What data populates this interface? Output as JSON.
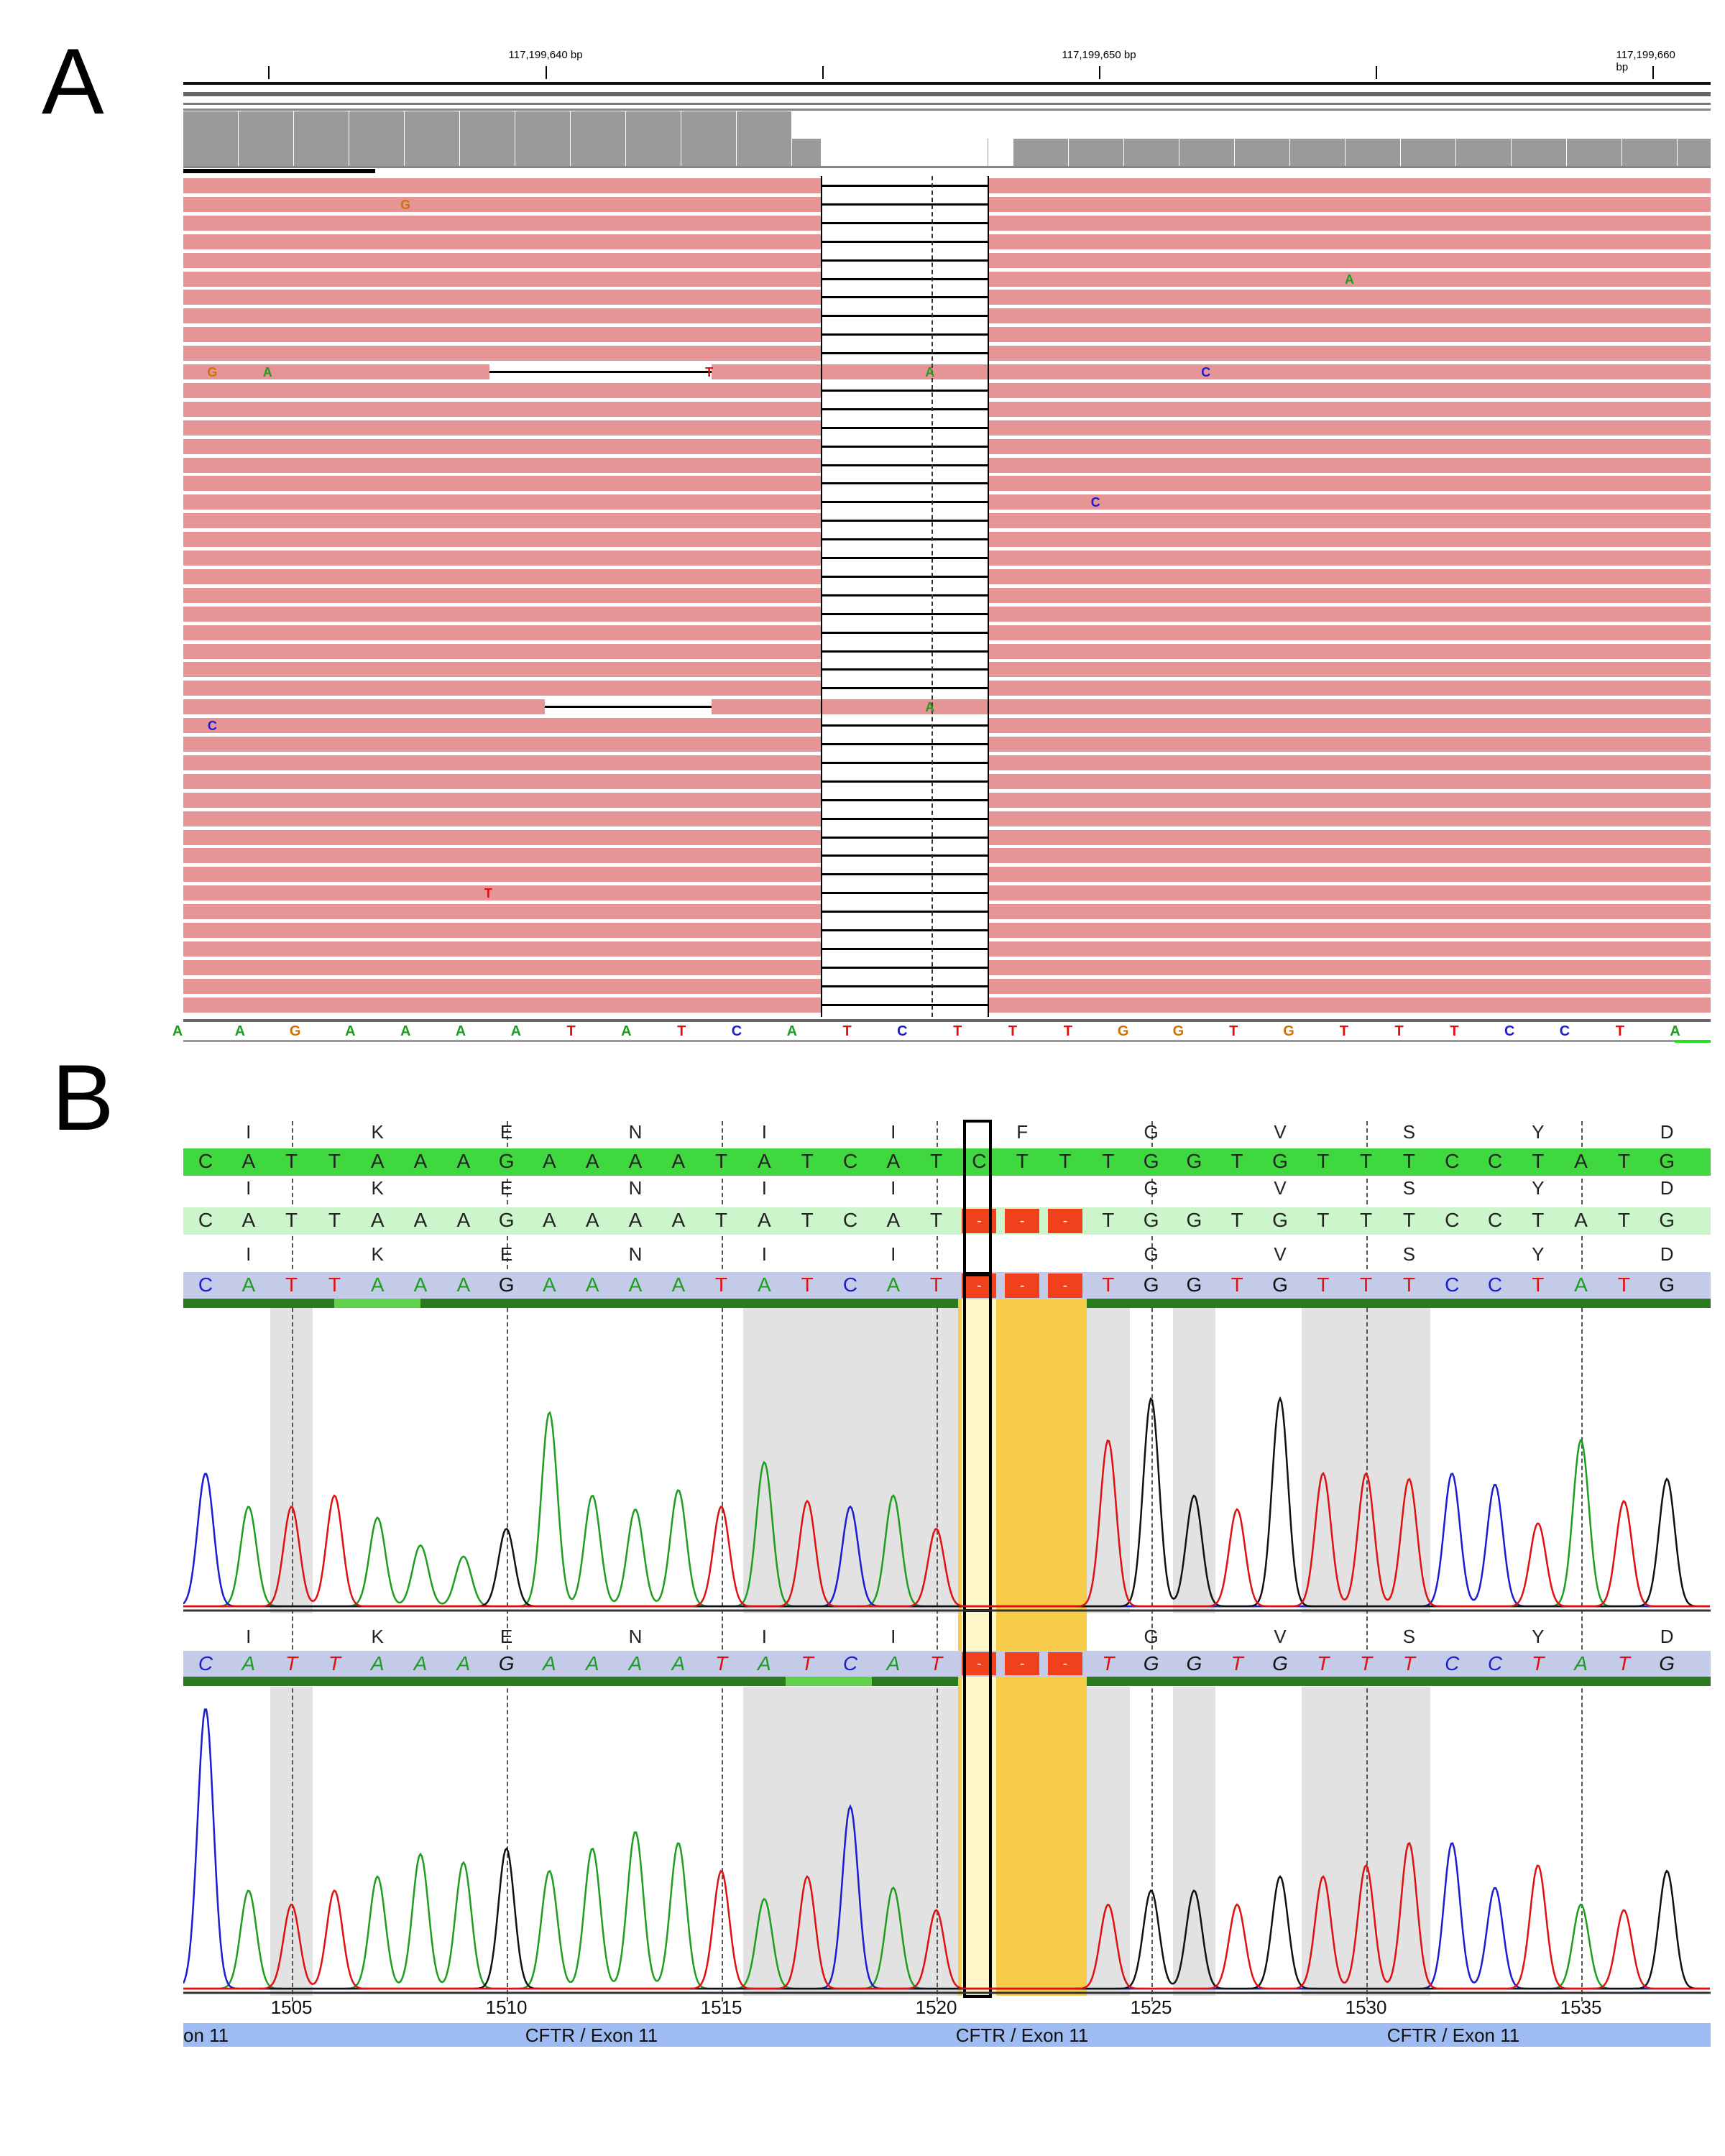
{
  "panel_a": {
    "label": "A",
    "ruler": {
      "labels": [
        "117,199,640 bp",
        "117,199,650 bp",
        "117,199,660 bp"
      ]
    },
    "reference": [
      "A",
      "A",
      "G",
      "A",
      "A",
      "A",
      "A",
      "T",
      "A",
      "T",
      "C",
      "A",
      "T",
      "C",
      "T",
      "T",
      "T",
      "G",
      "G",
      "T",
      "G",
      "T",
      "T",
      "T",
      "C",
      "C",
      "T",
      "A"
    ],
    "read_count": 45,
    "mismatches": [
      {
        "row": 1,
        "col": 4,
        "base": "G"
      },
      {
        "row": 5,
        "col": 21.1,
        "base": "A"
      },
      {
        "row": 10,
        "col": 0.5,
        "base": "G"
      },
      {
        "row": 10,
        "col": 1.5,
        "base": "A"
      },
      {
        "row": 10,
        "col": 9.5,
        "base": "T"
      },
      {
        "row": 10,
        "col": 13.5,
        "base": "A"
      },
      {
        "row": 10,
        "col": 18.5,
        "base": "C"
      },
      {
        "row": 17,
        "col": 16.5,
        "base": "C"
      },
      {
        "row": 28,
        "col": 13.5,
        "base": "A"
      },
      {
        "row": 29,
        "col": 0.5,
        "base": "C"
      },
      {
        "row": 38,
        "col": 5.5,
        "base": "T"
      }
    ]
  },
  "panel_b": {
    "label": "B",
    "reference_seq": [
      "C",
      "A",
      "T",
      "T",
      "A",
      "A",
      "A",
      "G",
      "A",
      "A",
      "A",
      "A",
      "T",
      "A",
      "T",
      "C",
      "A",
      "T",
      "C",
      "T",
      "T",
      "T",
      "G",
      "G",
      "T",
      "G",
      "T",
      "T",
      "T",
      "C",
      "C",
      "T",
      "A",
      "T",
      "G"
    ],
    "deleted_cols": [
      18,
      19,
      20
    ],
    "deletion_symbol": "-",
    "aa_ref": [
      {
        "col": 1,
        "aa": "I"
      },
      {
        "col": 4,
        "aa": "K"
      },
      {
        "col": 7,
        "aa": "E"
      },
      {
        "col": 10,
        "aa": "N"
      },
      {
        "col": 13,
        "aa": "I"
      },
      {
        "col": 16,
        "aa": "I"
      },
      {
        "col": 19,
        "aa": "F"
      },
      {
        "col": 22,
        "aa": "G"
      },
      {
        "col": 25,
        "aa": "V"
      },
      {
        "col": 28,
        "aa": "S"
      },
      {
        "col": 31,
        "aa": "Y"
      },
      {
        "col": 34,
        "aa": "D"
      }
    ],
    "aa_mut": [
      {
        "col": 1,
        "aa": "I"
      },
      {
        "col": 4,
        "aa": "K"
      },
      {
        "col": 7,
        "aa": "E"
      },
      {
        "col": 10,
        "aa": "N"
      },
      {
        "col": 13,
        "aa": "I"
      },
      {
        "col": 16,
        "aa": "I"
      },
      {
        "col": 22,
        "aa": "G"
      },
      {
        "col": 25,
        "aa": "V"
      },
      {
        "col": 28,
        "aa": "S"
      },
      {
        "col": 31,
        "aa": "Y"
      },
      {
        "col": 34,
        "aa": "D"
      }
    ],
    "trace1_heights": [
      0.48,
      0.36,
      0.36,
      0.4,
      0.32,
      0.22,
      0.18,
      0.28,
      0.7,
      0.4,
      0.35,
      0.42,
      0.36,
      0.52,
      0.38,
      0.36,
      0.4,
      0.28,
      0,
      0,
      0,
      0.6,
      0.75,
      0.4,
      0.35,
      0.75,
      0.48,
      0.48,
      0.46,
      0.48,
      0.44,
      0.3,
      0.6,
      0.38,
      0.46
    ],
    "trace2_heights": [
      1.0,
      0.35,
      0.3,
      0.35,
      0.4,
      0.48,
      0.45,
      0.5,
      0.42,
      0.5,
      0.56,
      0.52,
      0.42,
      0.32,
      0.4,
      0.65,
      0.36,
      0.28,
      0,
      0,
      0,
      0.3,
      0.35,
      0.35,
      0.3,
      0.4,
      0.4,
      0.44,
      0.52,
      0.52,
      0.36,
      0.44,
      0.3,
      0.28,
      0.42
    ],
    "position_numbers": [
      {
        "col": 2,
        "n": "1505"
      },
      {
        "col": 7,
        "n": "1510"
      },
      {
        "col": 12,
        "n": "1515"
      },
      {
        "col": 17,
        "n": "1520"
      },
      {
        "col": 22,
        "n": "1525"
      },
      {
        "col": 27,
        "n": "1530"
      },
      {
        "col": 32,
        "n": "1535"
      }
    ],
    "exon_labels": [
      "on 11",
      "CFTR / Exon 11",
      "CFTR / Exon 11",
      "CFTR / Exon 11"
    ]
  },
  "colors": {
    "A": "#1e9e1e",
    "C": "#1c1cd0",
    "G_igv": "#d17105",
    "G": "#111111",
    "T": "#e01010",
    "read": "#e59595",
    "highlight": "#f7cc48"
  }
}
